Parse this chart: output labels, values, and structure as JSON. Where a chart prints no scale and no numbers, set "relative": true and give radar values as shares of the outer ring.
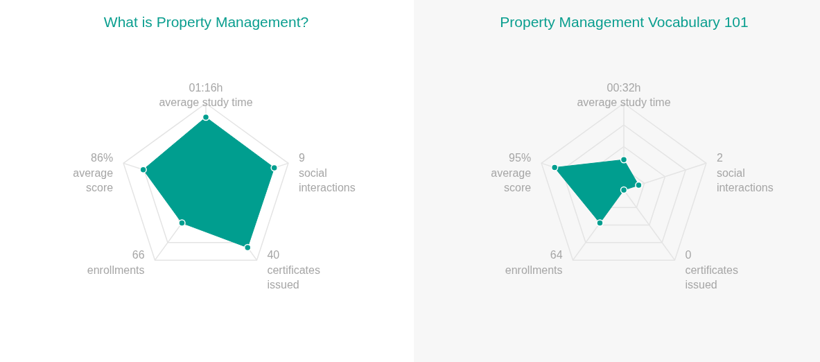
{
  "chart_data": [
    {
      "type": "radar",
      "title": "What is Property Management?",
      "categories": [
        "01:16h\naverage study time",
        "9\nsocial\ninteractions",
        "40\ncertificates\nissued",
        "66\nenrollments",
        "86%\naverage\nscore"
      ],
      "series": [
        {
          "color": "#009e8f",
          "values": [
            0.84,
            0.83,
            0.82,
            0.47,
            0.76
          ]
        }
      ],
      "relative": true,
      "grid": true,
      "marker": "circle"
    },
    {
      "type": "radar",
      "title": "Property Management Vocabulary 101",
      "categories": [
        "00:32h\naverage study time",
        "2\nsocial\ninteractions",
        "0\ncertificates\nissued",
        "64\nenrollments",
        "95%\naverage\nscore"
      ],
      "series": [
        {
          "color": "#009e8f",
          "values": [
            0.35,
            0.18,
            0,
            0.47,
            0.84
          ]
        }
      ],
      "relative": true,
      "grid": true,
      "marker": "circle"
    }
  ]
}
